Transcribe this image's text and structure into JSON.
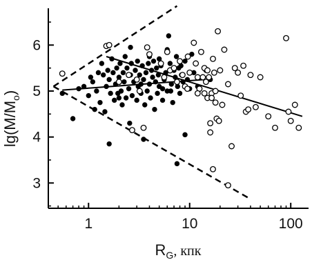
{
  "chart_data": {
    "type": "scatter",
    "xscale": "log",
    "xlim": [
      0.4,
      150
    ],
    "ylim": [
      2.45,
      6.8
    ],
    "xticks": [
      {
        "value": 1,
        "label": "1"
      },
      {
        "value": 10,
        "label": "10"
      },
      {
        "value": 100,
        "label": "100"
      }
    ],
    "yticks": [
      {
        "value": 3,
        "label": "3"
      },
      {
        "value": 4,
        "label": "4"
      },
      {
        "value": 5,
        "label": "5"
      },
      {
        "value": 6,
        "label": "6"
      }
    ],
    "xlabel": {
      "main": "R",
      "sub": "G",
      "unit": ", кпк"
    },
    "ylabel": {
      "pre": "lg(M/M",
      "sub": "o",
      "post": ")"
    },
    "grid": false,
    "legend": "none",
    "series": [
      {
        "marker": "filled-circle",
        "color": "#000000",
        "points": [
          [
            0.55,
            4.95
          ],
          [
            0.8,
            5.05
          ],
          [
            0.9,
            5.1
          ],
          [
            1.0,
            4.9
          ],
          [
            1.05,
            5.3
          ],
          [
            1.1,
            5.2
          ],
          [
            1.2,
            5.0
          ],
          [
            1.25,
            5.4
          ],
          [
            1.3,
            4.75
          ],
          [
            1.35,
            5.6
          ],
          [
            1.4,
            5.35
          ],
          [
            1.45,
            4.55
          ],
          [
            1.5,
            5.1
          ],
          [
            1.55,
            5.45
          ],
          [
            1.6,
            5.25
          ],
          [
            1.65,
            4.95
          ],
          [
            1.7,
            5.7
          ],
          [
            1.75,
            5.4
          ],
          [
            1.8,
            4.8
          ],
          [
            1.85,
            5.15
          ],
          [
            1.9,
            5.5
          ],
          [
            1.95,
            4.95
          ],
          [
            2.0,
            5.3
          ],
          [
            2.05,
            5.6
          ],
          [
            2.1,
            5.0
          ],
          [
            2.15,
            4.7
          ],
          [
            2.2,
            5.4
          ],
          [
            2.25,
            5.2
          ],
          [
            2.3,
            5.75
          ],
          [
            2.35,
            4.85
          ],
          [
            2.4,
            5.5
          ],
          [
            2.5,
            5.05
          ],
          [
            2.55,
            4.3
          ],
          [
            2.6,
            5.35
          ],
          [
            2.65,
            5.6
          ],
          [
            2.7,
            4.9
          ],
          [
            2.8,
            5.2
          ],
          [
            2.9,
            5.45
          ],
          [
            3.0,
            4.8
          ],
          [
            3.05,
            5.65
          ],
          [
            3.1,
            5.1
          ],
          [
            3.2,
            5.35
          ],
          [
            3.3,
            4.95
          ],
          [
            3.4,
            5.55
          ],
          [
            3.5,
            5.25
          ],
          [
            3.6,
            4.7
          ],
          [
            3.7,
            5.4
          ],
          [
            3.8,
            5.0
          ],
          [
            3.9,
            5.6
          ],
          [
            4.0,
            5.15
          ],
          [
            4.1,
            4.85
          ],
          [
            4.2,
            5.45
          ],
          [
            4.3,
            5.3
          ],
          [
            4.4,
            5.65
          ],
          [
            4.5,
            4.6
          ],
          [
            4.6,
            5.2
          ],
          [
            4.7,
            5.5
          ],
          [
            4.8,
            4.95
          ],
          [
            4.9,
            5.35
          ],
          [
            5.0,
            5.1
          ],
          [
            5.2,
            5.55
          ],
          [
            5.4,
            4.8
          ],
          [
            5.6,
            5.25
          ],
          [
            5.8,
            5.4
          ],
          [
            6.0,
            5.0
          ],
          [
            6.2,
            6.2
          ],
          [
            6.4,
            5.6
          ],
          [
            6.6,
            5.15
          ],
          [
            6.8,
            4.75
          ],
          [
            7.0,
            5.45
          ],
          [
            7.2,
            5.3
          ],
          [
            7.4,
            5.75
          ],
          [
            7.6,
            5.1
          ],
          [
            7.8,
            5.5
          ],
          [
            8.0,
            4.95
          ],
          [
            8.3,
            5.35
          ],
          [
            8.6,
            5.2
          ],
          [
            9.0,
            5.65
          ],
          [
            9.5,
            5.25
          ],
          [
            10.0,
            5.05
          ],
          [
            10.5,
            5.8
          ],
          [
            11.0,
            5.4
          ],
          [
            0.7,
            4.4
          ],
          [
            1.15,
            4.6
          ],
          [
            1.6,
            3.85
          ],
          [
            3.5,
            3.95
          ],
          [
            7.5,
            3.42
          ],
          [
            9.0,
            4.05
          ],
          [
            2.6,
            5.95
          ],
          [
            4.0,
            5.75
          ],
          [
            6.0,
            5.9
          ],
          [
            3.3,
            5.15
          ],
          [
            5.4,
            5.05
          ],
          [
            8.2,
            5.55
          ],
          [
            2.0,
            4.85
          ],
          [
            6.5,
            5.0
          ],
          [
            14.5,
            5.45
          ],
          [
            16.0,
            5.25
          ],
          [
            12.0,
            5.1
          ],
          [
            5.0,
            5.7
          ]
        ]
      },
      {
        "marker": "open-circle",
        "color": "#000000",
        "points": [
          [
            0.55,
            5.38
          ],
          [
            1.5,
            5.98
          ],
          [
            1.6,
            6.0
          ],
          [
            2.0,
            5.2
          ],
          [
            2.5,
            5.35
          ],
          [
            3.0,
            5.25
          ],
          [
            3.2,
            5.0
          ],
          [
            3.5,
            4.2
          ],
          [
            3.8,
            5.95
          ],
          [
            4.0,
            5.8
          ],
          [
            5.2,
            5.6
          ],
          [
            5.6,
            5.3
          ],
          [
            6.0,
            5.85
          ],
          [
            6.4,
            5.45
          ],
          [
            7.0,
            5.5
          ],
          [
            7.5,
            5.2
          ],
          [
            8.0,
            5.65
          ],
          [
            8.5,
            5.35
          ],
          [
            9.0,
            5.1
          ],
          [
            9.6,
            5.75
          ],
          [
            10.0,
            5.4
          ],
          [
            11.0,
            6.05
          ],
          [
            11.5,
            5.6
          ],
          [
            12.0,
            5.3
          ],
          [
            12.5,
            5.05
          ],
          [
            13.0,
            5.85
          ],
          [
            14.0,
            5.5
          ],
          [
            14.5,
            5.2
          ],
          [
            15.0,
            4.85
          ],
          [
            15.5,
            5.3
          ],
          [
            16.0,
            4.3
          ],
          [
            16.5,
            4.95
          ],
          [
            17.0,
            5.7
          ],
          [
            17.5,
            5.4
          ],
          [
            18.0,
            5.0
          ],
          [
            18.5,
            4.4
          ],
          [
            19.0,
            6.3
          ],
          [
            20.0,
            5.45
          ],
          [
            21.0,
            4.7
          ],
          [
            22.0,
            5.9
          ],
          [
            24.0,
            5.15
          ],
          [
            26.0,
            3.8
          ],
          [
            28.0,
            5.5
          ],
          [
            30.0,
            5.4
          ],
          [
            32.0,
            4.9
          ],
          [
            34.0,
            5.55
          ],
          [
            36.0,
            4.55
          ],
          [
            38.0,
            4.6
          ],
          [
            40.0,
            5.35
          ],
          [
            45.0,
            4.65
          ],
          [
            50.0,
            5.3
          ],
          [
            60.0,
            4.45
          ],
          [
            70.0,
            4.2
          ],
          [
            90.0,
            6.15
          ],
          [
            95.0,
            4.55
          ],
          [
            100.0,
            4.35
          ],
          [
            110.0,
            4.7
          ],
          [
            120.0,
            4.2
          ],
          [
            16.5,
            4.85
          ],
          [
            17.0,
            3.3
          ],
          [
            24.0,
            2.95
          ],
          [
            2.7,
            4.15
          ],
          [
            16.0,
            4.1
          ],
          [
            14.0,
            4.95
          ],
          [
            19.5,
            4.35
          ],
          [
            9.5,
            5.05
          ],
          [
            12.0,
            4.95
          ],
          [
            18.0,
            4.75
          ],
          [
            15.0,
            5.45
          ],
          [
            13.5,
            5.3
          ]
        ]
      }
    ],
    "lines": [
      {
        "style": "solid",
        "from": [
          0.55,
          5.02
        ],
        "to": [
          14,
          5.25
        ]
      },
      {
        "style": "solid",
        "from": [
          1.5,
          5.75
        ],
        "to": [
          130,
          4.45
        ]
      },
      {
        "style": "dashed",
        "from": [
          0.45,
          5.1
        ],
        "to": [
          7.5,
          6.85
        ]
      },
      {
        "style": "dashed",
        "from": [
          0.45,
          5.1
        ],
        "to": [
          40,
          2.65
        ]
      }
    ]
  }
}
